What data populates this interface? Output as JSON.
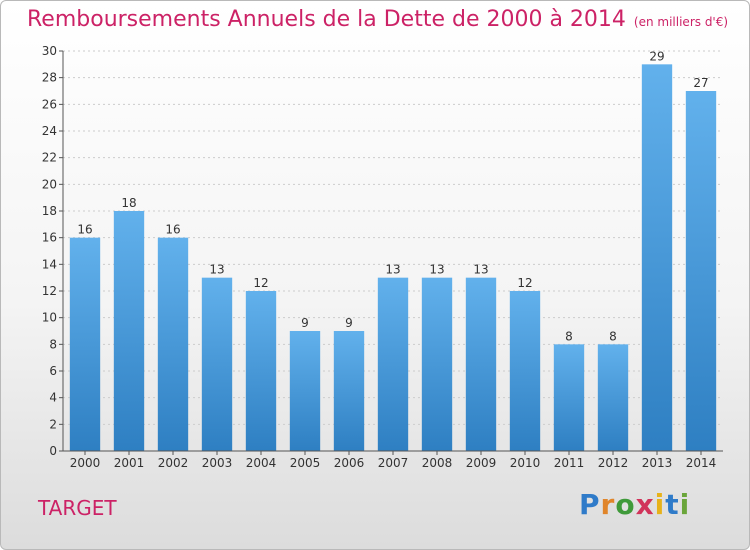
{
  "title": "Remboursements Annuels de la Dette de 2000 à 2014",
  "unit": "(en milliers d'€)",
  "commune": "TARGET",
  "logo": [
    "P",
    "r",
    "o",
    "x",
    "i",
    "t",
    "i"
  ],
  "colors": {
    "bar_light": "#62b1ec",
    "bar_dark": "#2e7fc2",
    "title": "#cc2266",
    "axis": "#555555",
    "grid": "#cccccc"
  },
  "chart_data": {
    "type": "bar",
    "categories": [
      "2000",
      "2001",
      "2002",
      "2003",
      "2004",
      "2005",
      "2006",
      "2007",
      "2008",
      "2009",
      "2010",
      "2011",
      "2012",
      "2013",
      "2014"
    ],
    "values": [
      16,
      18,
      16,
      13,
      12,
      9,
      9,
      13,
      13,
      13,
      12,
      8,
      8,
      29,
      27
    ],
    "ylim": [
      0,
      30
    ],
    "yticks": [
      0,
      2,
      4,
      6,
      8,
      10,
      12,
      14,
      16,
      18,
      20,
      22,
      24,
      26,
      28,
      30
    ],
    "grid": true,
    "data_labels": true
  }
}
